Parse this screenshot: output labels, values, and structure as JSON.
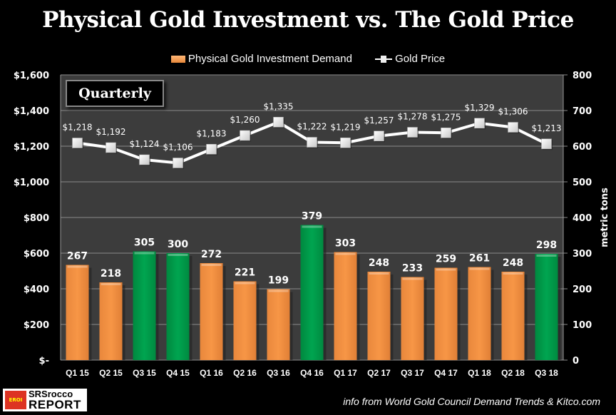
{
  "chart_data": {
    "type": "bar",
    "title": "Physical Gold Investment vs. The Gold Price",
    "annotation": "Quarterly",
    "categories": [
      "Q1 15",
      "Q2 15",
      "Q3 15",
      "Q4 15",
      "Q1 16",
      "Q2 16",
      "Q3 16",
      "Q4 16",
      "Q1 17",
      "Q2 17",
      "Q3 17",
      "Q4 17",
      "Q1 18",
      "Q2 18",
      "Q3 18"
    ],
    "series": [
      {
        "name": "Physical Gold Investment Demand",
        "type": "bar",
        "axis": "right",
        "values": [
          267,
          218,
          305,
          300,
          272,
          221,
          199,
          379,
          303,
          248,
          233,
          259,
          261,
          248,
          298
        ],
        "highlight": [
          false,
          false,
          true,
          true,
          false,
          false,
          false,
          true,
          false,
          false,
          false,
          false,
          false,
          false,
          true
        ],
        "labels": [
          "267",
          "218",
          "305",
          "300",
          "272",
          "221",
          "199",
          "379",
          "303",
          "248",
          "233",
          "259",
          "261",
          "248",
          "298"
        ]
      },
      {
        "name": "Gold Price",
        "type": "line",
        "axis": "left",
        "values": [
          1218,
          1192,
          1124,
          1106,
          1183,
          1260,
          1335,
          1222,
          1219,
          1257,
          1278,
          1275,
          1329,
          1306,
          1213
        ],
        "labels": [
          "$1,218",
          "$1,192",
          "$1,124",
          "$1,106",
          "$1,183",
          "$1,260",
          "$1,335",
          "$1,222",
          "$1,219",
          "$1,257",
          "$1,278",
          "$1,275",
          "$1,329",
          "$1,306",
          "$1,213"
        ]
      }
    ],
    "y_left": {
      "label": "",
      "range": [
        0,
        1600
      ],
      "ticks": [
        0,
        200,
        400,
        600,
        800,
        1000,
        1200,
        1400,
        1600
      ],
      "tick_labels": [
        "$-",
        "$200",
        "$400",
        "$600",
        "$800",
        "$1,000",
        "$1,200",
        "$1,400",
        "$1,600"
      ]
    },
    "y_right": {
      "label": "metric tons",
      "range": [
        0,
        800
      ],
      "ticks": [
        0,
        100,
        200,
        300,
        400,
        500,
        600,
        700,
        800
      ],
      "tick_labels": [
        "0",
        "100",
        "200",
        "300",
        "400",
        "500",
        "600",
        "700",
        "800"
      ]
    },
    "grid": true,
    "legend_position": "top",
    "colors": {
      "bar": "#f79646",
      "bar_highlight": "#00a550",
      "line": "#ffffff",
      "plot_bg": "#3c3c3c",
      "grid": "#8a8a8a"
    }
  },
  "source": "info from World Gold Council Demand Trends & Kitco.com",
  "logo": {
    "line1": "SRSrocco",
    "line2": "REPORT",
    "badge": "EROI"
  }
}
